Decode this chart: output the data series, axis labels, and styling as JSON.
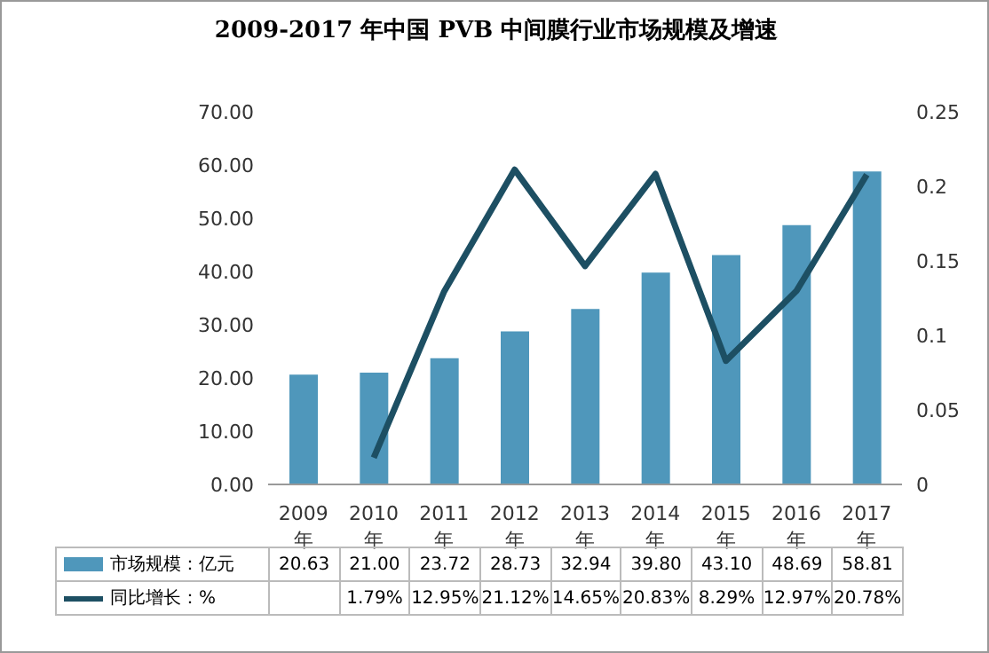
{
  "chart_data": {
    "type": "bar",
    "title": "2009-2017 年中国 PVB 中间膜行业市场规模及增速",
    "categories": [
      "2009年",
      "2010年",
      "2011年",
      "2012年",
      "2013年",
      "2014年",
      "2015年",
      "2016年",
      "2017年"
    ],
    "series": [
      {
        "name": "市场规模：亿元",
        "color": "#4f97bb",
        "values": [
          20.63,
          21.0,
          23.72,
          28.73,
          32.94,
          39.8,
          43.1,
          48.69,
          58.81
        ],
        "value_labels": [
          "20.63",
          "21.00",
          "23.72",
          "28.73",
          "32.94",
          "39.80",
          "43.10",
          "48.69",
          "58.81"
        ]
      },
      {
        "type": "line",
        "name": "同比增长：%",
        "color": "#1d4f63",
        "axis": "y2",
        "marker": "none",
        "values": [
          null,
          0.0179,
          0.1295,
          0.2112,
          0.1465,
          0.2083,
          0.0829,
          0.1297,
          0.2078
        ],
        "value_labels": [
          null,
          "1.79%",
          "12.95%",
          "21.12%",
          "14.65%",
          "20.83%",
          "8.29%",
          "12.97%",
          "20.78%"
        ]
      }
    ],
    "ylim": [
      0,
      70
    ],
    "yticks": [
      {
        "value": 0,
        "label": "0.00"
      },
      {
        "value": 10,
        "label": "10.00"
      },
      {
        "value": 20,
        "label": "20.00"
      },
      {
        "value": 30,
        "label": "30.00"
      },
      {
        "value": 40,
        "label": "40.00"
      },
      {
        "value": 50,
        "label": "50.00"
      },
      {
        "value": 60,
        "label": "60.00"
      },
      {
        "value": 70,
        "label": "70.00"
      }
    ],
    "y2lim": [
      0,
      0.25
    ],
    "y2ticks": [
      0,
      0.05,
      0.1,
      0.15,
      0.2,
      0.25
    ],
    "legend": "bottom"
  }
}
